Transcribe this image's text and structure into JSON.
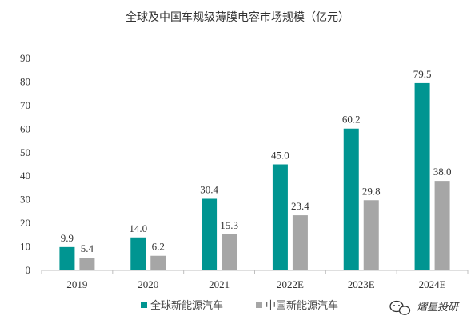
{
  "chart_data": {
    "type": "bar",
    "title": "全球及中国车规级薄膜电容市场规模（亿元）",
    "categories": [
      "2019",
      "2020",
      "2021",
      "2022E",
      "2023E",
      "2024E"
    ],
    "series": [
      {
        "name": "全球新能源汽车",
        "values": [
          9.9,
          14.0,
          30.4,
          45.0,
          60.2,
          79.5
        ],
        "labels": [
          "9.9",
          "14.0",
          "30.4",
          "45.0",
          "60.2",
          "79.5"
        ],
        "color": "#009591"
      },
      {
        "name": "中国新能源汽车",
        "values": [
          5.4,
          6.2,
          15.3,
          23.4,
          29.8,
          38.0
        ],
        "labels": [
          "5.4",
          "6.2",
          "15.3",
          "23.4",
          "29.8",
          "38.0"
        ],
        "color": "#a6a6a6"
      }
    ],
    "ylim": [
      0,
      90
    ],
    "yticks": [
      0,
      10,
      20,
      30,
      40,
      50,
      60,
      70,
      80,
      90
    ],
    "ytick_labels": [
      "0",
      "10",
      "20",
      "30",
      "40",
      "50",
      "60",
      "70",
      "80",
      "90"
    ],
    "grid": false,
    "legend_position": "bottom-center"
  },
  "watermark": {
    "text": "熠星投研",
    "icon": "wechat-icon"
  }
}
